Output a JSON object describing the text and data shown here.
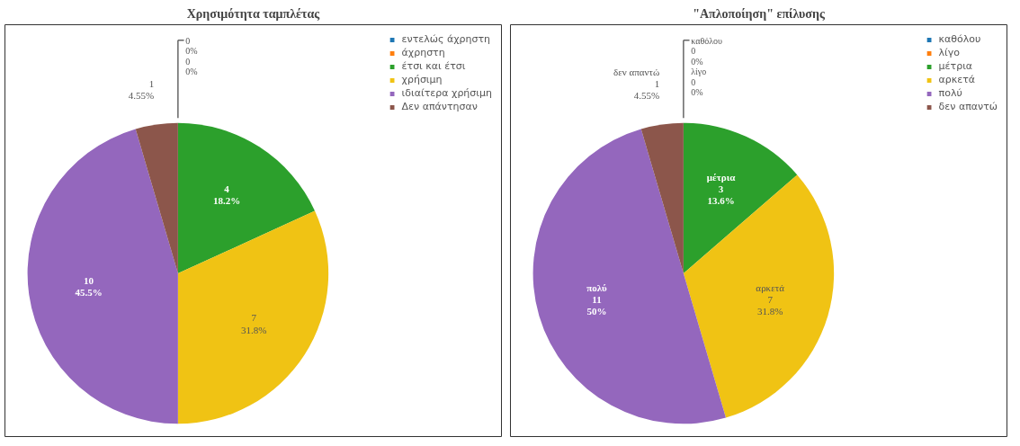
{
  "chart_data": [
    {
      "type": "pie",
      "title": "Χρησιμότητα ταμπλέτας",
      "categories": [
        "εντελώς άχρηστη",
        "άχρηστη",
        "έτσι και έτσι",
        "χρήσιμη",
        "ιδιαίτερα χρήσιμη",
        "Δεν απάντησαν"
      ],
      "values": [
        0,
        0,
        4,
        7,
        10,
        1
      ],
      "colors": [
        "#1f77b4",
        "#ff7f0e",
        "#2ca02c",
        "#f0c314",
        "#9467bd",
        "#8c564b"
      ],
      "value_labels": [
        "0\n0%",
        "0\n0%",
        "4\n18.2%",
        "7\n31.8%",
        "10\n45.5%",
        "1\n4.55%"
      ],
      "legend": "right"
    },
    {
      "type": "pie",
      "title": "\"Απλοποίηση\" επίλυσης",
      "categories": [
        "καθόλου",
        "λίγο",
        "μέτρια",
        "αρκετά",
        "πολύ",
        "δεν απαντώ"
      ],
      "values": [
        0,
        0,
        3,
        7,
        11,
        1
      ],
      "colors": [
        "#1f77b4",
        "#ff7f0e",
        "#2ca02c",
        "#f0c314",
        "#9467bd",
        "#8c564b"
      ],
      "value_labels": [
        "καθόλου\n0\n0%",
        "λίγο\n0\n0%",
        "μέτρια\n3\n13.6%",
        "αρκετά\n7\n31.8%",
        "πολύ\n11\n50%",
        "δεν απαντώ\n1\n4.55%"
      ],
      "legend": "right"
    }
  ]
}
